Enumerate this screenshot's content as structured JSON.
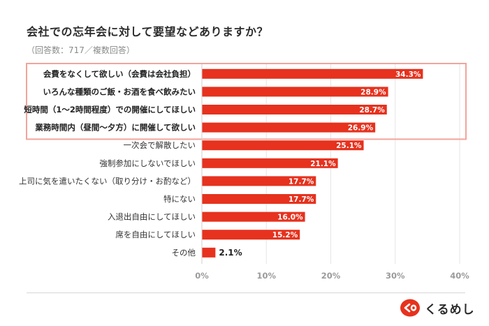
{
  "title": "会社での忘年会に対して要望などありますか？",
  "subtitle": "（回答数：717／複数回答）",
  "brand": {
    "name": "くるめし",
    "accent": "#e6321e"
  },
  "colors": {
    "bar": "#e6321e",
    "highlight_border": "#f2a49b",
    "grid": "#e5e5e5"
  },
  "chart_data": {
    "type": "bar",
    "orientation": "horizontal",
    "title": "会社での忘年会に対して要望などありますか？",
    "subtitle": "（回答数：717／複数回答）",
    "categories": [
      "会費をなくして欲しい（会費は会社負担）",
      "いろんな種類のご飯・お酒を食べ飲みたい",
      "短時間（1〜2時間程度）での開催にしてほしい",
      "業務時間内（昼間〜夕方）に開催して欲しい",
      "一次会で解散したい",
      "強制参加にしないでほしい",
      "上司に気を遣いたくない（取り分け・お酌など）",
      "特にない",
      "入退出自由にしてほしい",
      "席を自由にしてほしい",
      "その他"
    ],
    "values": [
      34.3,
      28.9,
      28.7,
      26.9,
      25.1,
      21.1,
      17.7,
      17.7,
      16.0,
      15.2,
      2.1
    ],
    "value_labels": [
      "34.3%",
      "28.9%",
      "28.7%",
      "26.9%",
      "25.1%",
      "21.1%",
      "17.7%",
      "17.7%",
      "16.0%",
      "15.2%",
      "2.1%"
    ],
    "highlighted": [
      0,
      1,
      2,
      3
    ],
    "xlim": [
      0,
      40
    ],
    "xticks": [
      0,
      10,
      20,
      30,
      40
    ],
    "xtick_labels": [
      "0%",
      "10%",
      "20%",
      "30%",
      "40%"
    ],
    "xlabel": "",
    "ylabel": "",
    "grid": true
  }
}
